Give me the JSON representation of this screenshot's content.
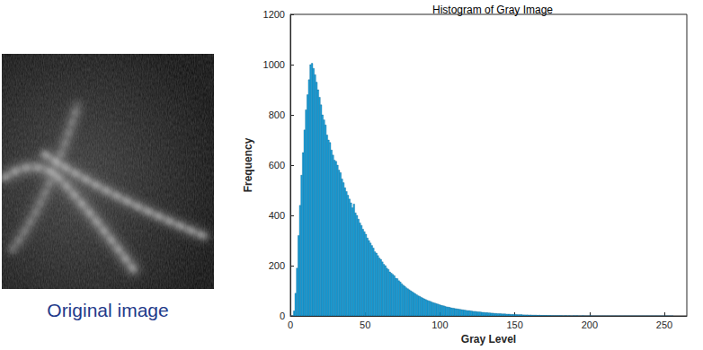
{
  "image": {
    "caption": "Original image"
  },
  "chart_data": {
    "type": "bar",
    "title": "Histogram of Gray Image",
    "x_label": "Gray Level",
    "y_label": "Frequency",
    "bins": [
      0,
      1,
      2,
      3,
      4,
      5,
      6,
      7,
      8,
      9,
      10,
      11,
      12,
      13,
      14,
      15,
      16,
      17,
      18,
      19,
      20,
      21,
      22,
      23,
      24,
      25,
      26,
      27,
      28,
      29,
      30,
      31,
      32,
      33,
      34,
      35,
      36,
      37,
      38,
      39,
      40,
      41,
      42,
      43,
      44,
      45,
      46,
      47,
      48,
      49,
      50,
      51,
      52,
      53,
      54,
      55,
      56,
      57,
      58,
      59,
      60,
      61,
      62,
      63,
      64,
      65,
      66,
      67,
      68,
      69,
      70,
      71,
      72,
      73,
      74,
      75,
      76,
      77,
      78,
      79,
      80,
      81,
      82,
      83,
      84,
      85,
      86,
      87,
      88,
      89,
      90,
      91,
      92,
      93,
      94,
      95,
      96,
      97,
      98,
      99,
      100,
      101,
      102,
      103,
      104,
      105,
      106,
      107,
      108,
      109,
      110,
      111,
      112,
      113,
      114,
      115,
      116,
      117,
      118,
      119,
      120,
      121,
      122,
      123,
      124,
      125,
      126,
      127,
      128,
      129,
      130,
      131,
      132,
      133,
      134,
      135,
      136,
      137,
      138,
      139,
      140,
      141,
      142,
      143,
      144,
      145,
      146,
      147,
      148,
      149,
      150,
      151,
      152,
      153,
      154,
      155,
      156,
      157,
      158,
      159,
      160,
      161,
      162,
      163,
      164,
      165,
      166,
      167,
      168,
      169,
      170,
      171,
      172,
      173,
      174,
      175,
      176,
      177,
      178,
      179,
      180,
      181,
      182,
      183,
      184,
      185,
      186,
      187,
      188,
      189,
      190,
      191,
      192,
      193,
      194,
      195,
      196,
      197,
      198,
      199,
      200,
      201,
      202,
      203,
      204,
      205,
      206,
      207,
      208,
      209,
      210,
      211,
      212,
      213,
      214,
      215,
      216,
      217,
      218,
      219,
      220,
      221,
      222,
      223,
      224,
      225,
      226,
      227,
      228,
      229,
      230,
      231,
      232,
      233,
      234,
      235,
      236,
      237,
      238,
      239,
      240,
      241,
      242,
      243,
      244,
      245,
      246,
      247,
      248,
      249,
      250,
      251,
      252,
      253,
      254,
      255,
      256
    ],
    "values": [
      0,
      0,
      20,
      90,
      190,
      320,
      440,
      560,
      650,
      740,
      820,
      880,
      940,
      1000,
      1005,
      985,
      960,
      930,
      900,
      870,
      840,
      800,
      780,
      760,
      720,
      700,
      690,
      660,
      640,
      620,
      615,
      600,
      580,
      570,
      545,
      530,
      510,
      495,
      480,
      465,
      450,
      430,
      445,
      410,
      400,
      385,
      370,
      360,
      345,
      335,
      325,
      310,
      300,
      290,
      280,
      270,
      255,
      250,
      240,
      230,
      225,
      215,
      205,
      200,
      190,
      185,
      175,
      170,
      165,
      160,
      150,
      148,
      140,
      135,
      128,
      122,
      118,
      112,
      108,
      104,
      100,
      96,
      92,
      88,
      84,
      80,
      78,
      74,
      71,
      68,
      65,
      62,
      60,
      58,
      55,
      53,
      51,
      49,
      47,
      45,
      43,
      41,
      40,
      38,
      36,
      35,
      34,
      32,
      31,
      30,
      29,
      28,
      27,
      26,
      25,
      24,
      23,
      22,
      21,
      21,
      20,
      19,
      18,
      18,
      17,
      16,
      16,
      15,
      14,
      14,
      13,
      13,
      12,
      12,
      11,
      11,
      10,
      10,
      9,
      9,
      9,
      8,
      8,
      8,
      7,
      7,
      7,
      6,
      6,
      6,
      6,
      5,
      5,
      5,
      5,
      4,
      4,
      4,
      4,
      3,
      4,
      3,
      3,
      3,
      3,
      2,
      3,
      2,
      2,
      2,
      2,
      2,
      1,
      2,
      1,
      1,
      1,
      1,
      1,
      1,
      1,
      1,
      0,
      1,
      1,
      0,
      1,
      0,
      0,
      1,
      0,
      1,
      0,
      0,
      0,
      1,
      0,
      0,
      0,
      0,
      1,
      0,
      0,
      0,
      0,
      0,
      0,
      0,
      0,
      0,
      0,
      0,
      0,
      0,
      0,
      0,
      0,
      0,
      0,
      0,
      0,
      0,
      0,
      0,
      0,
      0,
      0,
      0,
      0,
      0,
      0,
      0,
      0,
      0,
      0,
      0,
      0,
      0,
      0,
      0,
      0,
      0,
      0,
      0,
      0,
      0,
      0,
      0,
      0,
      0,
      0,
      0,
      0,
      0,
      0,
      0
    ],
    "color": "#1aa3de",
    "xlim": [
      0,
      265
    ],
    "xticks": [
      0,
      50,
      100,
      150,
      200,
      250
    ],
    "ylim": [
      0,
      1200
    ],
    "yticks": [
      0,
      200,
      400,
      600,
      800,
      1000,
      1200
    ],
    "grid": false
  }
}
